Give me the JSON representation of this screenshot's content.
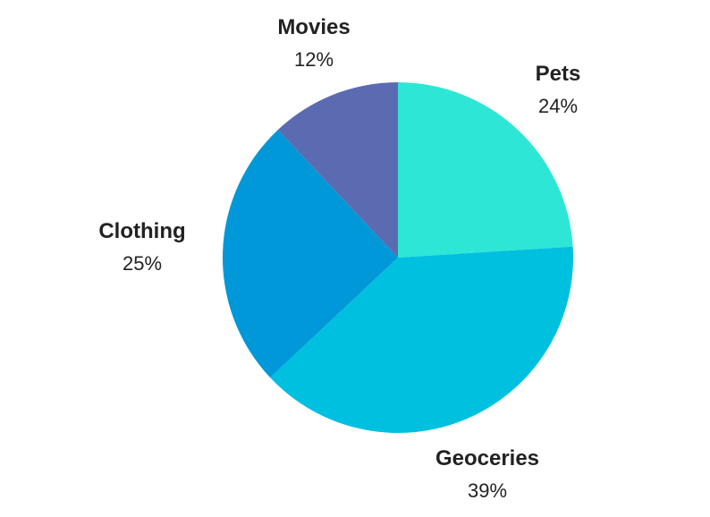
{
  "chart_data": {
    "type": "pie",
    "title": "",
    "start_angle_deg": 0,
    "direction": "clockwise",
    "slices": [
      {
        "label": "Pets",
        "value": 24,
        "value_label": "24%",
        "color": "#2EE6D6"
      },
      {
        "label": "Geoceries",
        "value": 39,
        "value_label": "39%",
        "color": "#00C0E0"
      },
      {
        "label": "Clothing",
        "value": 25,
        "value_label": "25%",
        "color": "#0098D8"
      },
      {
        "label": "Movies",
        "value": 12,
        "value_label": "12%",
        "color": "#5B6BB1"
      }
    ],
    "legend": "none"
  }
}
